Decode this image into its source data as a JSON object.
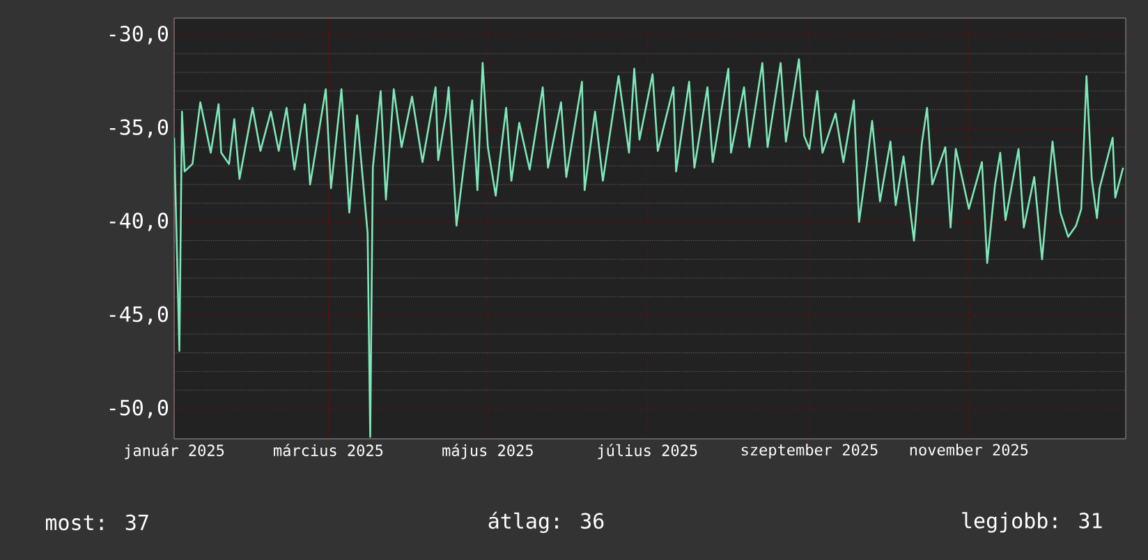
{
  "chart_data": {
    "type": "line",
    "color": "#7ee8b8",
    "grid": true,
    "xlim": [
      "2025-01-01",
      "2025-12-31"
    ],
    "ylim": [
      -51.6,
      -29.1
    ],
    "xticks": [
      {
        "value": "2025-01-01",
        "label": "január 2025"
      },
      {
        "value": "2025-03-01",
        "label": "március 2025"
      },
      {
        "value": "2025-05-01",
        "label": "május 2025"
      },
      {
        "value": "2025-07-01",
        "label": "július 2025"
      },
      {
        "value": "2025-09-01",
        "label": "szeptember 2025"
      },
      {
        "value": "2025-11-01",
        "label": "november 2025"
      }
    ],
    "yticks": [
      {
        "value": -30,
        "label": "-30,0"
      },
      {
        "value": -35,
        "label": "-35,0"
      },
      {
        "value": -40,
        "label": "-40,0"
      },
      {
        "value": -45,
        "label": "-45,0"
      },
      {
        "value": -50,
        "label": "-50,0"
      }
    ],
    "annotations": [
      "most: 37",
      "átlag: 36",
      "legjobb: 31"
    ],
    "x": [
      "2025-01-01",
      "2025-01-03",
      "2025-01-04",
      "2025-01-05",
      "2025-01-08",
      "2025-01-11",
      "2025-01-15",
      "2025-01-18",
      "2025-01-19",
      "2025-01-22",
      "2025-01-24",
      "2025-01-26",
      "2025-01-31",
      "2025-02-03",
      "2025-02-07",
      "2025-02-10",
      "2025-02-13",
      "2025-02-16",
      "2025-02-20",
      "2025-02-22",
      "2025-02-28",
      "2025-03-02",
      "2025-03-06",
      "2025-03-09",
      "2025-03-12",
      "2025-03-16",
      "2025-03-17",
      "2025-03-18",
      "2025-03-21",
      "2025-03-23",
      "2025-03-26",
      "2025-03-29",
      "2025-04-02",
      "2025-04-06",
      "2025-04-11",
      "2025-04-12",
      "2025-04-15",
      "2025-04-16",
      "2025-04-19",
      "2025-04-22",
      "2025-04-25",
      "2025-04-27",
      "2025-04-29",
      "2025-05-01",
      "2025-05-04",
      "2025-05-06",
      "2025-05-08",
      "2025-05-10",
      "2025-05-13",
      "2025-05-17",
      "2025-05-22",
      "2025-05-24",
      "2025-05-29",
      "2025-05-31",
      "2025-06-06",
      "2025-06-07",
      "2025-06-11",
      "2025-06-14",
      "2025-06-20",
      "2025-06-24",
      "2025-06-26",
      "2025-06-28",
      "2025-07-03",
      "2025-07-05",
      "2025-07-11",
      "2025-07-12",
      "2025-07-17",
      "2025-07-19",
      "2025-07-24",
      "2025-07-26",
      "2025-08-01",
      "2025-08-02",
      "2025-08-07",
      "2025-08-09",
      "2025-08-14",
      "2025-08-16",
      "2025-08-21",
      "2025-08-23",
      "2025-08-28",
      "2025-08-30",
      "2025-09-01",
      "2025-09-04",
      "2025-09-06",
      "2025-09-11",
      "2025-09-14",
      "2025-09-18",
      "2025-09-20",
      "2025-09-23",
      "2025-09-25",
      "2025-09-28",
      "2025-10-02",
      "2025-10-04",
      "2025-10-07",
      "2025-10-11",
      "2025-10-14",
      "2025-10-16",
      "2025-10-18",
      "2025-10-23",
      "2025-10-25",
      "2025-10-27",
      "2025-11-01",
      "2025-11-06",
      "2025-11-08",
      "2025-11-11",
      "2025-11-13",
      "2025-11-15",
      "2025-11-20",
      "2025-11-22",
      "2025-11-26",
      "2025-11-29",
      "2025-12-01",
      "2025-12-03",
      "2025-12-06",
      "2025-12-09",
      "2025-12-12",
      "2025-12-14",
      "2025-12-16",
      "2025-12-18",
      "2025-12-20",
      "2025-12-21",
      "2025-12-26",
      "2025-12-27",
      "2025-12-30"
    ],
    "values": [
      -35.5,
      -46.9,
      -34.1,
      -37.3,
      -36.9,
      -33.6,
      -36.3,
      -33.7,
      -36.3,
      -36.9,
      -34.5,
      -37.7,
      -33.9,
      -36.2,
      -34.1,
      -36.2,
      -33.9,
      -37.2,
      -33.7,
      -38.0,
      -32.9,
      -38.2,
      -32.9,
      -39.5,
      -34.3,
      -40.6,
      -51.5,
      -37.1,
      -33.0,
      -38.8,
      -32.9,
      -36.0,
      -33.3,
      -36.8,
      -32.8,
      -36.7,
      -34.2,
      -32.8,
      -40.2,
      -36.8,
      -33.5,
      -38.3,
      -31.5,
      -36.0,
      -38.6,
      -36.2,
      -33.9,
      -37.8,
      -34.7,
      -37.2,
      -32.8,
      -37.1,
      -33.6,
      -37.6,
      -32.5,
      -38.3,
      -34.1,
      -37.8,
      -32.2,
      -36.3,
      -31.8,
      -35.6,
      -32.1,
      -36.2,
      -32.8,
      -37.3,
      -32.5,
      -37.1,
      -32.8,
      -36.8,
      -31.8,
      -36.3,
      -32.8,
      -36.0,
      -31.5,
      -36.0,
      -31.5,
      -35.7,
      -31.3,
      -35.4,
      -36.1,
      -33.0,
      -36.3,
      -34.2,
      -36.8,
      -33.5,
      -40.0,
      -36.9,
      -34.6,
      -38.9,
      -35.7,
      -39.1,
      -36.5,
      -41.0,
      -35.8,
      -33.9,
      -38.0,
      -36.0,
      -40.3,
      -36.1,
      -39.3,
      -36.8,
      -42.2,
      -38.0,
      -36.3,
      -39.9,
      -36.1,
      -40.3,
      -37.6,
      -42.0,
      -38.8,
      -35.7,
      -39.5,
      -40.8,
      -40.2,
      -39.3,
      -32.2,
      -37.7,
      -39.8,
      -38.2,
      -35.5,
      -38.7,
      -37.1
    ]
  }
}
